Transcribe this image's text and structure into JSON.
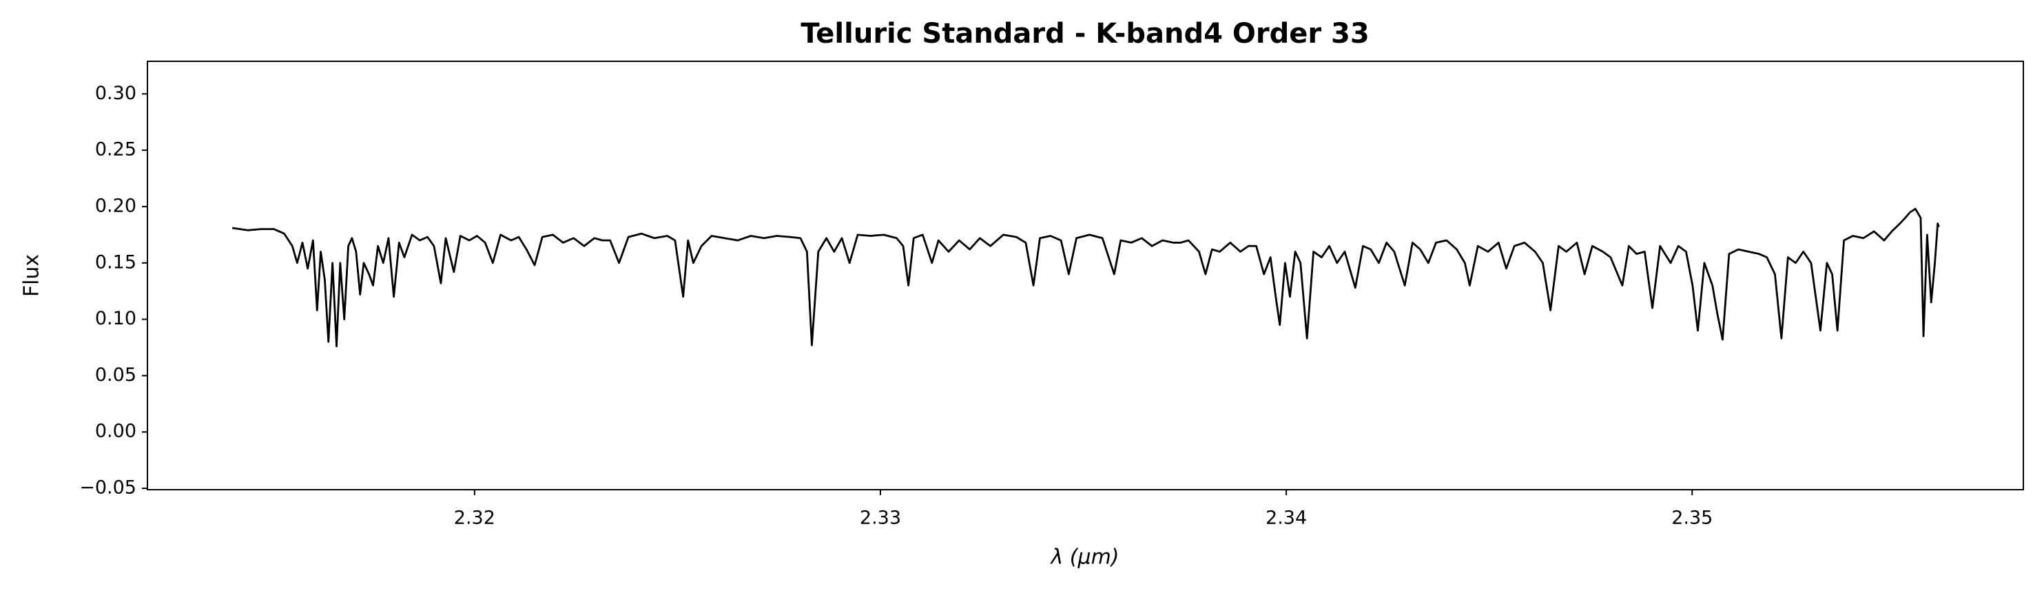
{
  "chart_data": {
    "type": "line",
    "title": "Telluric Standard - K-band4 Order 33",
    "xlabel": "λ (μm)",
    "ylabel": "Flux",
    "color": "#000000",
    "xlim": [
      2.31194,
      2.35816
    ],
    "ylim": [
      -0.0512,
      0.3289
    ],
    "xticks": [
      2.32,
      2.33,
      2.34,
      2.35
    ],
    "yticks": [
      {
        "value": -0.05,
        "label": "−0.05"
      },
      {
        "value": 0,
        "label": "0.00"
      },
      {
        "value": 0.05,
        "label": "0.05"
      },
      {
        "value": 0.1,
        "label": "0.10"
      },
      {
        "value": 0.15,
        "label": "0.15"
      },
      {
        "value": 0.2,
        "label": "0.20"
      },
      {
        "value": 0.25,
        "label": "0.25"
      },
      {
        "value": 0.3,
        "label": "0.30"
      }
    ],
    "x": [
      2.31403,
      2.31441,
      2.31474,
      2.31506,
      2.31531,
      2.31551,
      2.31563,
      2.31576,
      2.31589,
      2.31602,
      2.31612,
      2.31621,
      2.31631,
      2.3164,
      2.3165,
      2.3166,
      2.31669,
      2.31679,
      2.31689,
      2.31698,
      2.31708,
      2.31718,
      2.31727,
      2.3174,
      2.3175,
      2.31762,
      2.31775,
      2.31788,
      2.31801,
      2.31814,
      2.31827,
      2.31846,
      2.31865,
      2.31884,
      2.319,
      2.31917,
      2.31929,
      2.31949,
      2.31965,
      2.31987,
      2.32006,
      2.32026,
      2.32045,
      2.32064,
      2.3209,
      2.32109,
      2.32128,
      2.32148,
      2.32167,
      2.32193,
      2.32218,
      2.32244,
      2.3227,
      2.32295,
      2.32315,
      2.32334,
      2.32356,
      2.32379,
      2.32411,
      2.32443,
      2.32475,
      2.32494,
      2.32514,
      2.32526,
      2.32539,
      2.32559,
      2.32584,
      2.32616,
      2.32648,
      2.32681,
      2.32713,
      2.32745,
      2.32777,
      2.32803,
      2.32819,
      2.32831,
      2.32847,
      2.32867,
      2.32886,
      2.32905,
      2.32924,
      2.32944,
      2.32976,
      2.33008,
      2.3304,
      2.33056,
      2.33069,
      2.33082,
      2.33104,
      2.33127,
      2.33143,
      2.33168,
      2.33194,
      2.3322,
      2.33245,
      2.33271,
      2.33303,
      2.33335,
      2.33358,
      2.33377,
      2.33393,
      2.33419,
      2.33445,
      2.33464,
      2.33483,
      2.33515,
      2.33547,
      2.33576,
      2.33592,
      2.33618,
      2.33644,
      2.33669,
      2.33695,
      2.33721,
      2.3374,
      2.33759,
      2.33785,
      2.33801,
      2.33817,
      2.33836,
      2.33862,
      2.33887,
      2.33907,
      2.33926,
      2.33945,
      2.33961,
      2.33974,
      2.33984,
      2.33997,
      2.34009,
      2.34022,
      2.34035,
      2.34051,
      2.34067,
      2.34087,
      2.34106,
      2.34125,
      2.34144,
      2.3417,
      2.34189,
      2.34208,
      2.34228,
      2.34247,
      2.34266,
      2.34292,
      2.34311,
      2.3433,
      2.3435,
      2.34369,
      2.34395,
      2.3442,
      2.3444,
      2.34452,
      2.34472,
      2.34497,
      2.34523,
      2.34542,
      2.34562,
      2.34587,
      2.34613,
      2.34632,
      2.34651,
      2.34671,
      2.3469,
      2.34716,
      2.34735,
      2.34754,
      2.3478,
      2.34799,
      2.34828,
      2.34844,
      2.34863,
      2.34883,
      2.34902,
      2.34921,
      2.34947,
      2.34966,
      2.34985,
      2.35001,
      2.35014,
      2.3503,
      2.3505,
      2.35062,
      2.35075,
      2.35091,
      2.35114,
      2.35139,
      2.35165,
      2.35184,
      2.35204,
      2.3522,
      2.35236,
      2.35255,
      2.35274,
      2.35293,
      2.35316,
      2.35332,
      2.35345,
      2.35358,
      2.35374,
      2.35396,
      2.35422,
      2.35448,
      2.35473,
      2.35492,
      2.35512,
      2.35525,
      2.35537,
      2.3555,
      2.35563,
      2.3557,
      2.35579,
      2.35589,
      2.35598,
      2.35605,
      2.35608
    ],
    "values": [
      0.181,
      0.179,
      0.18,
      0.18,
      0.176,
      0.165,
      0.15,
      0.168,
      0.145,
      0.17,
      0.108,
      0.16,
      0.135,
      0.08,
      0.15,
      0.076,
      0.15,
      0.1,
      0.165,
      0.172,
      0.16,
      0.122,
      0.15,
      0.14,
      0.13,
      0.165,
      0.15,
      0.172,
      0.12,
      0.168,
      0.155,
      0.175,
      0.17,
      0.173,
      0.165,
      0.132,
      0.172,
      0.142,
      0.174,
      0.17,
      0.174,
      0.168,
      0.15,
      0.175,
      0.17,
      0.173,
      0.162,
      0.148,
      0.173,
      0.175,
      0.168,
      0.172,
      0.165,
      0.172,
      0.17,
      0.17,
      0.15,
      0.173,
      0.176,
      0.172,
      0.174,
      0.17,
      0.12,
      0.17,
      0.15,
      0.165,
      0.174,
      0.172,
      0.17,
      0.174,
      0.172,
      0.174,
      0.173,
      0.172,
      0.16,
      0.077,
      0.16,
      0.172,
      0.16,
      0.172,
      0.15,
      0.175,
      0.174,
      0.175,
      0.172,
      0.165,
      0.13,
      0.172,
      0.175,
      0.15,
      0.17,
      0.16,
      0.17,
      0.162,
      0.172,
      0.165,
      0.175,
      0.173,
      0.168,
      0.13,
      0.172,
      0.174,
      0.17,
      0.14,
      0.172,
      0.175,
      0.172,
      0.14,
      0.17,
      0.168,
      0.172,
      0.165,
      0.17,
      0.168,
      0.168,
      0.17,
      0.16,
      0.14,
      0.162,
      0.16,
      0.168,
      0.16,
      0.165,
      0.165,
      0.14,
      0.155,
      0.12,
      0.095,
      0.15,
      0.12,
      0.16,
      0.15,
      0.083,
      0.16,
      0.155,
      0.165,
      0.15,
      0.16,
      0.128,
      0.165,
      0.162,
      0.15,
      0.168,
      0.16,
      0.13,
      0.168,
      0.162,
      0.15,
      0.168,
      0.17,
      0.162,
      0.15,
      0.13,
      0.165,
      0.16,
      0.168,
      0.145,
      0.165,
      0.168,
      0.16,
      0.15,
      0.108,
      0.165,
      0.16,
      0.168,
      0.14,
      0.165,
      0.16,
      0.155,
      0.13,
      0.165,
      0.158,
      0.16,
      0.11,
      0.165,
      0.15,
      0.165,
      0.16,
      0.13,
      0.09,
      0.15,
      0.13,
      0.105,
      0.082,
      0.158,
      0.162,
      0.16,
      0.158,
      0.155,
      0.14,
      0.083,
      0.155,
      0.15,
      0.16,
      0.15,
      0.09,
      0.15,
      0.14,
      0.09,
      0.17,
      0.174,
      0.172,
      0.178,
      0.17,
      0.178,
      0.185,
      0.19,
      0.195,
      0.198,
      0.19,
      0.085,
      0.175,
      0.115,
      0.15,
      0.185,
      0.182
    ]
  }
}
